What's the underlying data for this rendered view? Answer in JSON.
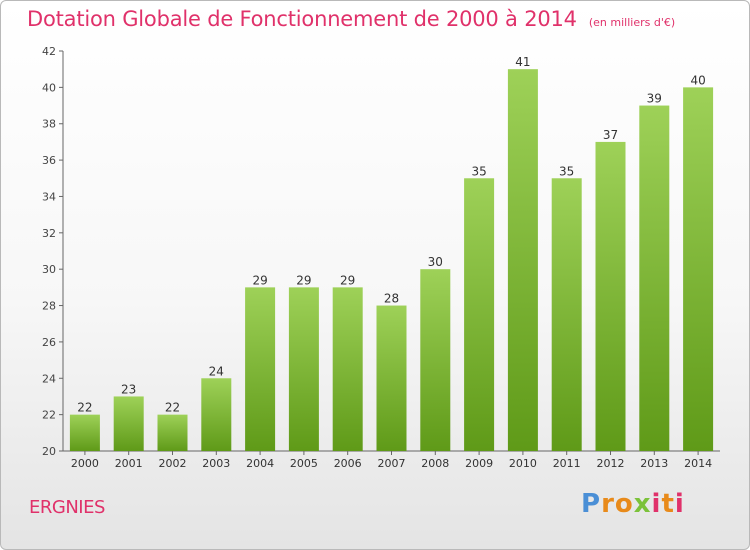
{
  "header": {
    "title": "Dotation Globale de Fonctionnement de 2000 à 2014",
    "subtitle": "(en milliers d'€)"
  },
  "footer": {
    "commune": "ERGNIES",
    "logo": "Proxiti"
  },
  "colors": {
    "title": "#e0316a",
    "bar_top": "#9ed158",
    "bar_bottom": "#5f9a18"
  },
  "chart_data": {
    "type": "bar",
    "categories": [
      "2000",
      "2001",
      "2002",
      "2003",
      "2004",
      "2005",
      "2006",
      "2007",
      "2008",
      "2009",
      "2010",
      "2011",
      "2012",
      "2013",
      "2014"
    ],
    "values": [
      22,
      23,
      22,
      24,
      29,
      29,
      29,
      28,
      30,
      35,
      41,
      35,
      37,
      39,
      40
    ],
    "title": "Dotation Globale de Fonctionnement de 2000 à 2014",
    "subtitle": "(en milliers d'€)",
    "ylim": [
      20,
      42
    ],
    "yticks": [
      20,
      22,
      24,
      26,
      28,
      30,
      32,
      34,
      36,
      38,
      40,
      42
    ],
    "grid": false,
    "data_labels": true
  }
}
